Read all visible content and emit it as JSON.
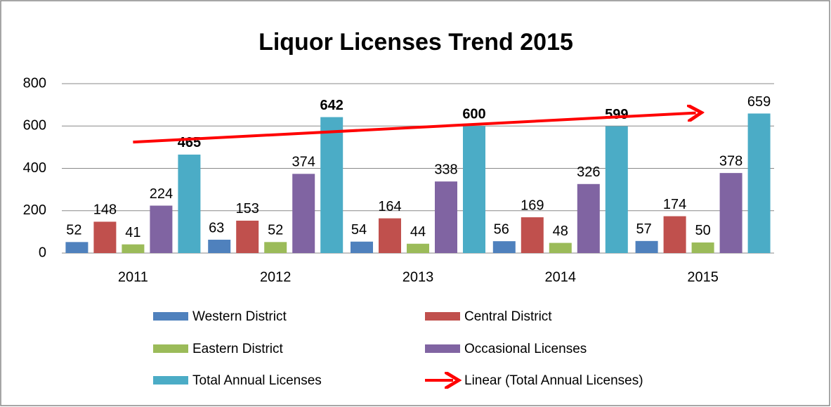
{
  "chart_data": {
    "type": "bar",
    "title": "Liquor Licenses Trend 2015",
    "categories": [
      "2011",
      "2012",
      "2013",
      "2014",
      "2015"
    ],
    "series": [
      {
        "name": "Western District",
        "color": "#4f81bd",
        "values": [
          52,
          63,
          54,
          56,
          57
        ]
      },
      {
        "name": "Central District",
        "color": "#c0504d",
        "values": [
          148,
          153,
          164,
          169,
          174
        ]
      },
      {
        "name": "Eastern District",
        "color": "#9bbb59",
        "values": [
          41,
          52,
          44,
          48,
          50
        ]
      },
      {
        "name": "Occasional Licenses",
        "color": "#8064a2",
        "values": [
          224,
          374,
          338,
          326,
          378
        ]
      },
      {
        "name": "Total Annual Licenses",
        "color": "#4bacc6",
        "values": [
          465,
          642,
          600,
          599,
          659
        ]
      }
    ],
    "trendline": {
      "name": "Linear (Total Annual Licenses)",
      "color": "#ff0000"
    },
    "ylim": [
      0,
      800
    ],
    "yticks": [
      0,
      200,
      400,
      600,
      800
    ],
    "grid": true
  }
}
